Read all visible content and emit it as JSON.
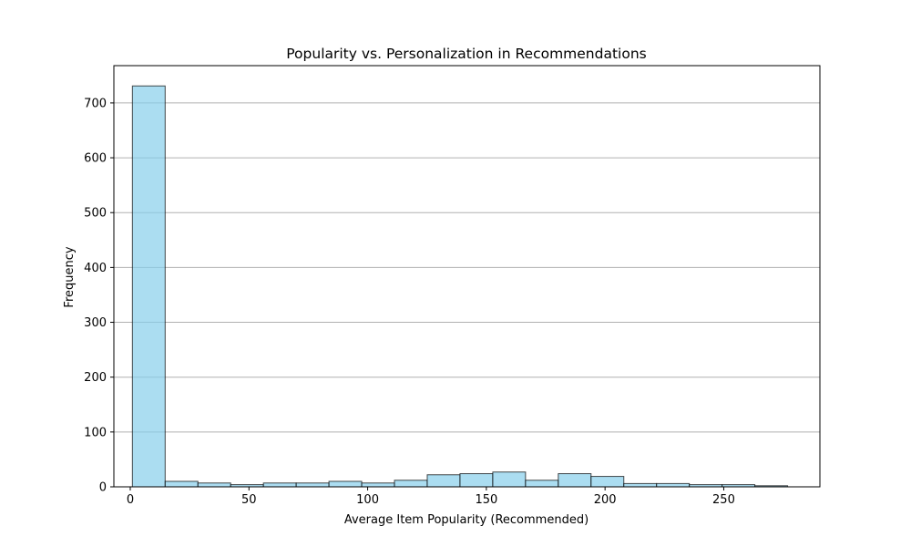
{
  "chart_data": {
    "type": "bar",
    "title": "Popularity vs. Personalization in Recommendations",
    "xlabel": "Average Item Popularity (Recommended)",
    "ylabel": "Frequency",
    "xlim": [
      -6.9,
      290.5
    ],
    "ylim": [
      0,
      768
    ],
    "x_ticks": [
      0,
      50,
      100,
      150,
      200,
      250
    ],
    "y_ticks": [
      0,
      100,
      200,
      300,
      400,
      500,
      600,
      700
    ],
    "grid": "y",
    "bin_edges": [
      0.9,
      14.7,
      28.5,
      42.3,
      56.1,
      69.9,
      83.7,
      97.5,
      111.3,
      125.1,
      138.9,
      152.7,
      166.5,
      180.3,
      194.1,
      207.9,
      221.7,
      235.5,
      249.3,
      263.1,
      276.9
    ],
    "values": [
      731,
      10,
      7,
      4,
      7,
      7,
      10,
      7,
      12,
      22,
      24,
      27,
      12,
      24,
      19,
      6,
      6,
      4,
      4,
      2
    ],
    "colors": {
      "bar_fill": "#87ceeb",
      "bar_edge": "#000000",
      "grid": "#b0b0b0"
    }
  }
}
